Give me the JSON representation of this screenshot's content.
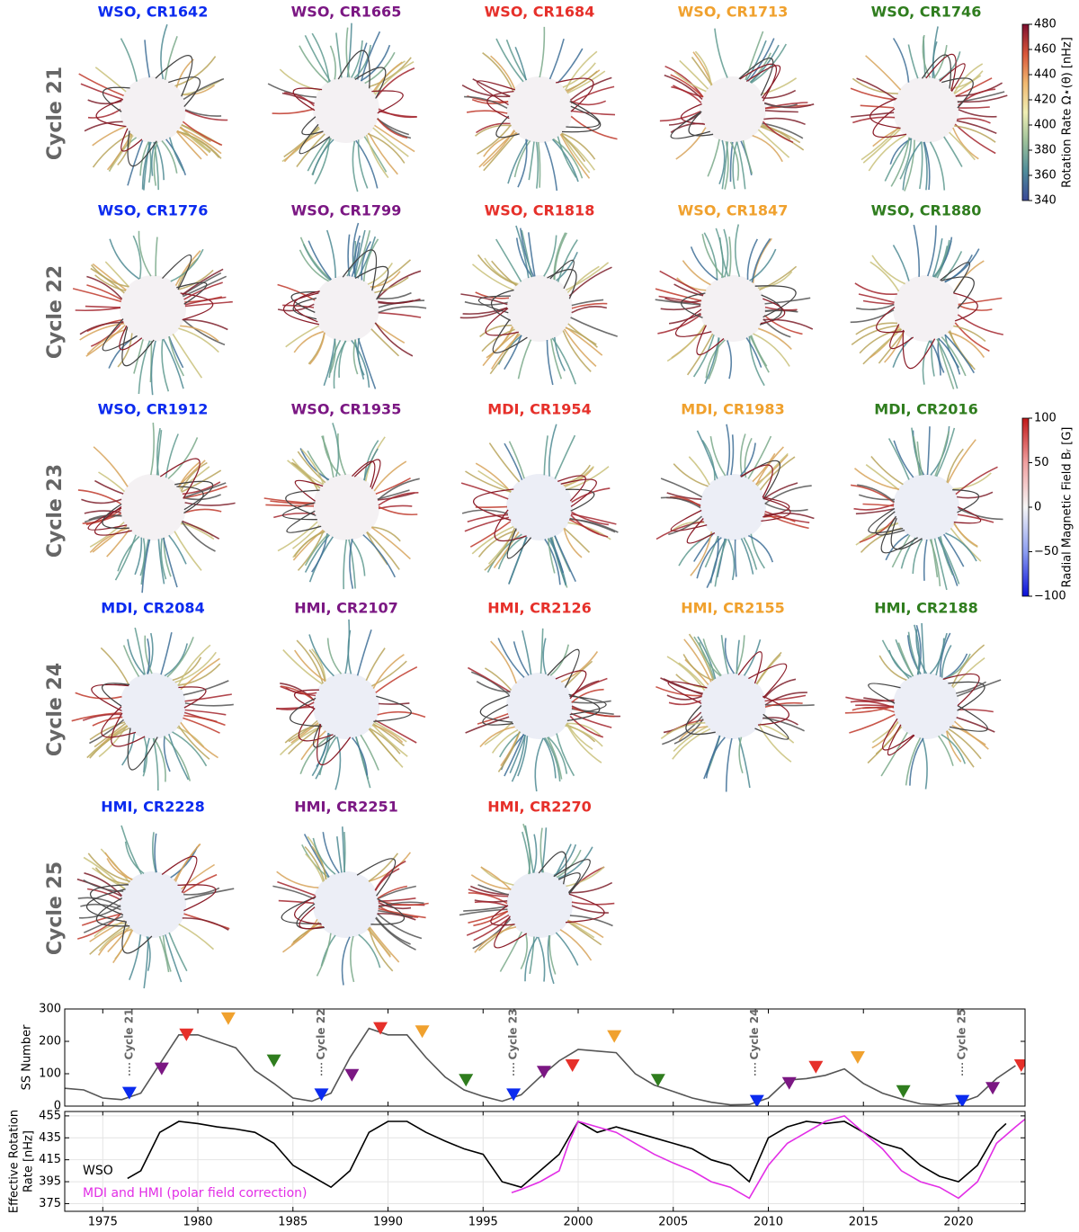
{
  "panels": {
    "column_colors": [
      "#0b2bef",
      "#7b1783",
      "#e6302a",
      "#f0a12e",
      "#2f7d1e"
    ],
    "rows": [
      {
        "label": "Cycle 21",
        "panels": [
          "WSO, CR1642",
          "WSO, CR1665",
          "WSO, CR1684",
          "WSO, CR1713",
          "WSO, CR1746"
        ]
      },
      {
        "label": "Cycle 22",
        "panels": [
          "WSO, CR1776",
          "WSO, CR1799",
          "WSO, CR1818",
          "WSO, CR1847",
          "WSO, CR1880"
        ]
      },
      {
        "label": "Cycle 23",
        "panels": [
          "WSO, CR1912",
          "WSO, CR1935",
          "MDI, CR1954",
          "MDI, CR1983",
          "MDI, CR2016"
        ]
      },
      {
        "label": "Cycle 24",
        "panels": [
          "MDI, CR2084",
          "HMI, CR2107",
          "HMI, CR2126",
          "HMI, CR2155",
          "HMI, CR2188"
        ]
      },
      {
        "label": "Cycle 25",
        "panels": [
          "HMI, CR2228",
          "HMI, CR2251",
          "HMI, CR2270"
        ]
      }
    ]
  },
  "colorbars": [
    {
      "label": "Rotation Rate Ω⋆(θ) [nHz]",
      "lim": [
        340,
        480
      ],
      "ticks": [
        340,
        360,
        380,
        400,
        420,
        440,
        460,
        480
      ],
      "colors": [
        "#3a4897",
        "#4f8c9a",
        "#9cc09a",
        "#efeeb4",
        "#f0b870",
        "#d8563a",
        "#7d0f2f"
      ]
    },
    {
      "label": "Radial Magnetic Field Bᵣ [G]",
      "lim": [
        -100,
        100
      ],
      "ticks": [
        {
          "value": -100,
          "label": "−100"
        },
        {
          "value": -50,
          "label": "−50"
        },
        0,
        50,
        100
      ],
      "colors": [
        "#0a10d8",
        "#8c9ef0",
        "#f6f6f6",
        "#f0a0a0",
        "#c01818"
      ]
    }
  ],
  "chart_data": [
    {
      "type": "line",
      "ylabel": "SS Number",
      "xlim": [
        1973,
        2023.5
      ],
      "ylim": [
        0,
        300
      ],
      "yticks": [
        0,
        100,
        200,
        300
      ],
      "xticks": [
        1975,
        1980,
        1985,
        1990,
        1995,
        2000,
        2005,
        2010,
        2015,
        2020
      ],
      "series": [
        {
          "color": "#555555",
          "x": [
            1973,
            1974,
            1975,
            1976,
            1977,
            1978,
            1979,
            1980,
            1981,
            1982,
            1983,
            1984,
            1985,
            1986,
            1987,
            1988,
            1989,
            1990,
            1991,
            1992,
            1993,
            1994,
            1995,
            1996,
            1997,
            1998,
            1999,
            2000,
            2001,
            2002,
            2003,
            2004,
            2005,
            2006,
            2007,
            2008,
            2009,
            2010,
            2011,
            2012,
            2013,
            2014,
            2015,
            2016,
            2017,
            2018,
            2019,
            2020,
            2021,
            2022,
            2023
          ],
          "values": [
            55,
            50,
            25,
            20,
            40,
            130,
            220,
            220,
            200,
            180,
            110,
            70,
            25,
            15,
            40,
            150,
            240,
            220,
            220,
            150,
            90,
            50,
            30,
            15,
            35,
            90,
            140,
            175,
            170,
            165,
            100,
            65,
            45,
            25,
            12,
            4,
            5,
            25,
            80,
            85,
            95,
            115,
            70,
            40,
            22,
            7,
            4,
            9,
            30,
            85,
            125
          ]
        }
      ],
      "markers": {
        "x": [
          1976.4,
          1978.1,
          1979.4,
          1981.6,
          1984.0,
          1986.5,
          1988.1,
          1989.6,
          1991.8,
          1994.1,
          1996.6,
          1998.2,
          1999.7,
          2001.9,
          2004.2,
          2009.4,
          2011.1,
          2012.5,
          2014.7,
          2017.1,
          2020.2,
          2021.8,
          2023.3
        ],
        "values": [
          40,
          115,
          220,
          270,
          140,
          35,
          95,
          240,
          230,
          80,
          35,
          105,
          125,
          215,
          80,
          15,
          70,
          120,
          150,
          45,
          15,
          55,
          125
        ],
        "colors": [
          "#0b2bef",
          "#7b1783",
          "#e6302a",
          "#f0a12e",
          "#2f7d1e",
          "#0b2bef",
          "#7b1783",
          "#e6302a",
          "#f0a12e",
          "#2f7d1e",
          "#0b2bef",
          "#7b1783",
          "#e6302a",
          "#f0a12e",
          "#2f7d1e",
          "#0b2bef",
          "#7b1783",
          "#e6302a",
          "#f0a12e",
          "#2f7d1e",
          "#0b2bef",
          "#7b1783",
          "#e6302a"
        ]
      },
      "annotations": [
        {
          "text": "Cycle 21",
          "x": 1976.4
        },
        {
          "text": "Cycle 22",
          "x": 1986.5
        },
        {
          "text": "Cycle 23",
          "x": 1996.6
        },
        {
          "text": "Cycle 24",
          "x": 2009.3
        },
        {
          "text": "Cycle 25",
          "x": 2020.2
        }
      ]
    },
    {
      "type": "line",
      "ylabel": [
        "Effective Rotation",
        "Rate [nHz]"
      ],
      "xlim": [
        1973,
        2023.5
      ],
      "ylim": [
        368,
        459
      ],
      "yticks": [
        375,
        395,
        415,
        435,
        455
      ],
      "xticks": [
        1975,
        1980,
        1985,
        1990,
        1995,
        2000,
        2005,
        2010,
        2015,
        2020
      ],
      "grid": true,
      "series": [
        {
          "name": "WSO",
          "color": "#000000",
          "x": [
            1976.3,
            1977,
            1978,
            1979,
            1980,
            1981,
            1982,
            1983,
            1984,
            1985,
            1986,
            1987,
            1988,
            1989,
            1990,
            1991,
            1992,
            1993,
            1994,
            1995,
            1996,
            1997,
            1998,
            1999,
            2000,
            2001,
            2002,
            2003,
            2004,
            2005,
            2006,
            2007,
            2008,
            2009,
            2010,
            2011,
            2012,
            2013,
            2014,
            2015,
            2016,
            2017,
            2018,
            2019,
            2020,
            2021,
            2022,
            2022.5
          ],
          "values": [
            398,
            405,
            440,
            450,
            448,
            445,
            443,
            440,
            430,
            410,
            400,
            390,
            405,
            440,
            450,
            450,
            440,
            432,
            425,
            420,
            395,
            390,
            405,
            420,
            450,
            440,
            445,
            440,
            435,
            430,
            425,
            415,
            410,
            395,
            435,
            445,
            450,
            448,
            450,
            440,
            430,
            425,
            410,
            400,
            395,
            410,
            440,
            448
          ]
        },
        {
          "name": "MDI and HMI (polar field correction)",
          "color": "#e22ee6",
          "x": [
            1996.5,
            1997,
            1998,
            1999,
            1999.5,
            2000,
            2001,
            2002,
            2003,
            2004,
            2005,
            2006,
            2007,
            2008,
            2009,
            2010,
            2011,
            2012,
            2013,
            2014,
            2015,
            2016,
            2017,
            2018,
            2019,
            2020,
            2021,
            2022,
            2023,
            2023.5
          ],
          "values": [
            385,
            388,
            395,
            405,
            430,
            450,
            445,
            440,
            430,
            420,
            412,
            405,
            395,
            390,
            380,
            410,
            430,
            440,
            450,
            455,
            440,
            425,
            405,
            395,
            390,
            380,
            395,
            430,
            445,
            452
          ]
        }
      ]
    }
  ]
}
